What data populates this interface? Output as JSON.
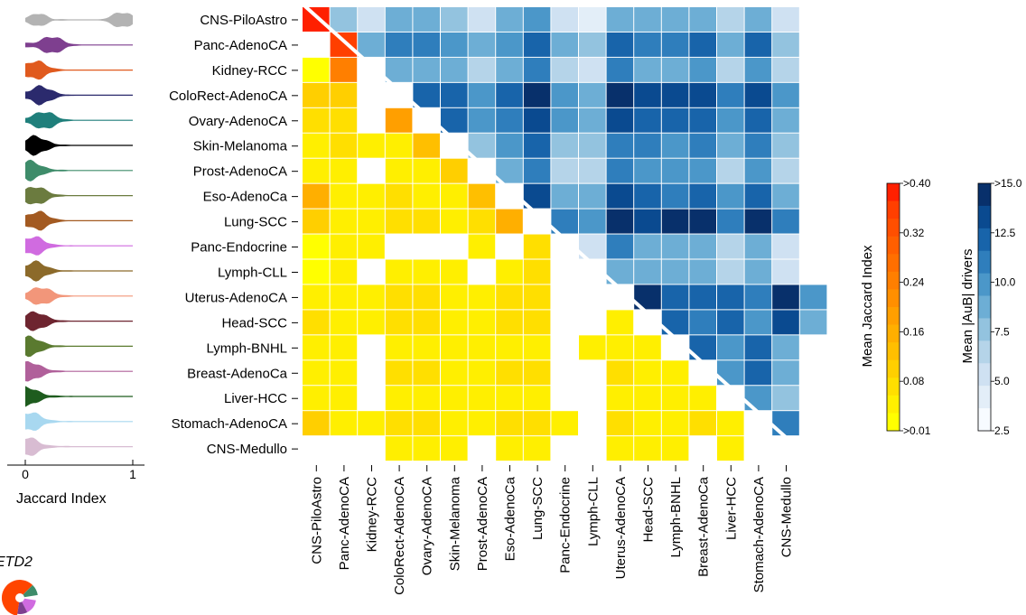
{
  "chart_data": {
    "type": "heatmap",
    "categories": [
      "CNS-PiloAstro",
      "Panc-AdenoCA",
      "Kidney-RCC",
      "ColoRect-AdenoCA",
      "Ovary-AdenoCA",
      "Skin-Melanoma",
      "Prost-AdenoCA",
      "Eso-AdenoCa",
      "Lung-SCC",
      "Panc-Endocrine",
      "Lymph-CLL",
      "Uterus-AdenoCA",
      "Head-SCC",
      "Lymph-BNHL",
      "Breast-AdenoCa",
      "Liver-HCC",
      "Stomach-AdenoCA",
      "CNS-Medullo"
    ],
    "diagonal_jaccard": [
      0.4,
      0.36,
      null,
      null,
      null,
      null,
      null,
      null,
      null,
      null,
      null,
      null,
      null,
      null,
      null,
      null,
      null,
      null
    ],
    "lower_triangle_jaccard": [
      [],
      [
        null
      ],
      [
        0.01,
        0.24
      ],
      [
        0.09,
        0.1,
        null
      ],
      [
        0.08,
        0.06,
        null,
        0.18
      ],
      [
        0.08,
        0.06,
        0.03,
        0.04,
        0.12
      ],
      [
        0.04,
        0.04,
        null,
        0.03,
        0.04,
        0.1
      ],
      [
        0.16,
        0.03,
        0.04,
        0.06,
        0.05,
        0.04,
        0.14
      ],
      [
        0.1,
        0.05,
        0.05,
        0.08,
        0.06,
        0.04,
        0.06,
        0.15
      ],
      [
        0.02,
        0.03,
        0.03,
        null,
        null,
        null,
        0.03,
        null,
        0.06,
        0.08
      ],
      [
        0.03,
        0.03,
        null,
        0.04,
        0.04,
        0.03,
        null,
        0.04,
        0.06,
        null,
        0.1
      ],
      [
        0.05,
        0.04,
        0.03,
        0.06,
        0.08,
        0.05,
        0.05,
        0.06,
        0.06,
        null,
        null,
        0.12
      ],
      [
        0.06,
        0.04,
        0.04,
        0.06,
        0.06,
        0.05,
        0.05,
        0.06,
        0.08,
        null,
        null,
        0.05,
        0.08
      ],
      [
        0.03,
        0.03,
        null,
        0.03,
        0.04,
        0.03,
        0.04,
        0.04,
        0.05,
        null,
        0.03,
        0.04,
        0.05,
        0.1
      ],
      [
        0.05,
        0.04,
        null,
        0.06,
        0.08,
        0.05,
        0.04,
        0.06,
        0.06,
        null,
        null,
        0.06,
        0.05,
        0.04,
        0.04
      ],
      [
        0.04,
        0.03,
        null,
        0.04,
        0.04,
        0.04,
        0.04,
        0.05,
        0.05,
        null,
        null,
        0.04,
        0.04,
        0.03,
        0.04,
        0.04
      ],
      [
        0.1,
        0.05,
        0.03,
        0.06,
        0.06,
        0.05,
        0.05,
        0.08,
        0.06,
        0.03,
        null,
        0.06,
        0.05,
        0.04,
        0.06,
        0.05,
        0.04
      ],
      [
        null,
        null,
        null,
        0.03,
        0.03,
        0.03,
        null,
        0.03,
        0.03,
        null,
        null,
        0.03,
        0.03,
        0.03,
        null,
        0.03,
        null
      ]
    ],
    "extra_first_column": [
      null,
      null,
      null,
      null,
      null,
      0.04,
      null,
      null,
      null,
      null,
      0.02,
      null,
      null,
      null,
      null,
      null,
      null,
      null
    ],
    "upper_triangle_drivers": [
      [
        6.5,
        3.0,
        8.0,
        7.0,
        6.0,
        3.0,
        7.0,
        9.0,
        3.0,
        2.0,
        8.0,
        7.0,
        7.0,
        8.0,
        4.0,
        8.0,
        2.5
      ],
      [
        8.0,
        11.0,
        10.5,
        9.0,
        8.0,
        9.0,
        12.0,
        7.0,
        6.5,
        11.5,
        10.5,
        10.0,
        12.0,
        8.0,
        12.0,
        6.5
      ],
      [
        8.0,
        7.5,
        7.0,
        4.5,
        7.5,
        10.0,
        4.0,
        3.5,
        10.0,
        8.0,
        8.0,
        9.0,
        5.0,
        9.0,
        4.0
      ],
      [
        12.0,
        12.0,
        9.0,
        12.0,
        15.0,
        9.0,
        8.0,
        15.0,
        14.0,
        13.5,
        14.0,
        10.5,
        13.0,
        9.0
      ],
      [
        11.5,
        9.0,
        11.0,
        13.5,
        8.5,
        8.0,
        13.0,
        12.0,
        11.5,
        12.0,
        9.5,
        12.5,
        8.0
      ],
      [
        6.5,
        9.0,
        11.5,
        6.5,
        5.5,
        10.5,
        10.0,
        9.5,
        10.0,
        7.5,
        10.5,
        6.5
      ],
      [
        8.0,
        10.0,
        5.0,
        4.0,
        10.0,
        9.0,
        8.5,
        9.5,
        5.0,
        8.5,
        4.0
      ],
      [
        13.5,
        8.0,
        7.0,
        13.0,
        12.0,
        11.0,
        12.5,
        9.0,
        12.0,
        8.0
      ],
      [
        10.0,
        8.5,
        15.0,
        14.0,
        15.0,
        15.0,
        10.5,
        15.0,
        10.0
      ],
      [
        3.5,
        10.0,
        8.0,
        8.0,
        8.0,
        5.0,
        8.0,
        3.5
      ],
      [
        8.0,
        8.0,
        7.5,
        7.5,
        4.0,
        7.5,
        3.0
      ],
      [
        14.5,
        12.5,
        12.0,
        12.5,
        10.0,
        14.5,
        9.0
      ],
      [
        12.0,
        11.0,
        11.5,
        9.0,
        13.0,
        8.0
      ],
      [
        11.5,
        9.0,
        12.5,
        8.0
      ],
      [
        9.0,
        12.5,
        8.0
      ],
      [
        8.5,
        5.5
      ],
      [
        10.5
      ],
      []
    ],
    "jaccard_legend": {
      "title": "Mean Jaccard Index",
      "labels": [
        ">0.40",
        "0.32",
        "0.24",
        "0.16",
        "0.08",
        ">0.01"
      ],
      "min": 0.01,
      "max": 0.4,
      "colors": [
        "#ffff00",
        "#ffef00",
        "#ffdf00",
        "#ffcf00",
        "#ffbf00",
        "#ffaf00",
        "#ff9f00",
        "#ff8f00",
        "#ff7f00",
        "#ff6f00",
        "#ff5f00",
        "#ff4f00",
        "#ff3f00",
        "#ff2000"
      ]
    },
    "drivers_legend": {
      "title": "Mean |AuB| drivers",
      "labels": [
        ">15.0",
        "12.5",
        "10.0",
        "7.5",
        "5.0",
        "2.5"
      ],
      "min": 0,
      "max": 15,
      "colors": [
        "#f7fbff",
        "#e3eef8",
        "#cfe1f2",
        "#b5d4e9",
        "#93c3df",
        "#6daed5",
        "#4b97c9",
        "#2f7ebc",
        "#1864aa",
        "#0a4a90",
        "#08306b"
      ]
    }
  },
  "violin_panel": {
    "axis_label": "Jaccard Index",
    "ticks": [
      "0",
      "1"
    ],
    "colors": [
      "#b3b3b3",
      "#7e3f8f",
      "#e05a1e",
      "#2b2a6d",
      "#1f7f7b",
      "#000000",
      "#3e8c6a",
      "#6b7b3f",
      "#a35a21",
      "#d06be0",
      "#8c6a2a",
      "#f2967a",
      "#6e2530",
      "#5a7a2f",
      "#b0609a",
      "#1e5c1e",
      "#a8d8f0",
      "#d8bcd2"
    ],
    "violins": [
      {
        "base": 0.3,
        "peak": 0.9
      },
      {
        "base": 0.25,
        "peak": 0.25
      },
      {
        "base": 0.2,
        "peak": 0.1
      },
      {
        "base": 0.2,
        "peak": 0.15
      },
      {
        "base": 0.15,
        "peak": 0.18
      },
      {
        "base": 0.1,
        "peak": 0.1
      },
      {
        "base": 0.05,
        "peak": 0.05
      },
      {
        "base": 0.1,
        "peak": 0.1
      },
      {
        "base": 0.1,
        "peak": 0.12
      },
      {
        "base": 0.1,
        "peak": 0.08
      },
      {
        "base": 0.05,
        "peak": 0.1
      },
      {
        "base": 0.05,
        "peak": 0.15
      },
      {
        "base": 0.05,
        "peak": 0.1
      },
      {
        "base": 0.05,
        "peak": 0.05
      },
      {
        "base": 0.05,
        "peak": 0.05
      },
      {
        "base": 0.03,
        "peak": 0.02
      },
      {
        "base": 0.03,
        "peak": 0.05
      },
      {
        "base": 0.02,
        "peak": 0.02
      }
    ]
  },
  "inset": {
    "label": "ETD2",
    "colors": [
      "#ff4500",
      "#3e8c6a",
      "#d06be0",
      "#7e3f8f",
      "#ffffff"
    ]
  }
}
